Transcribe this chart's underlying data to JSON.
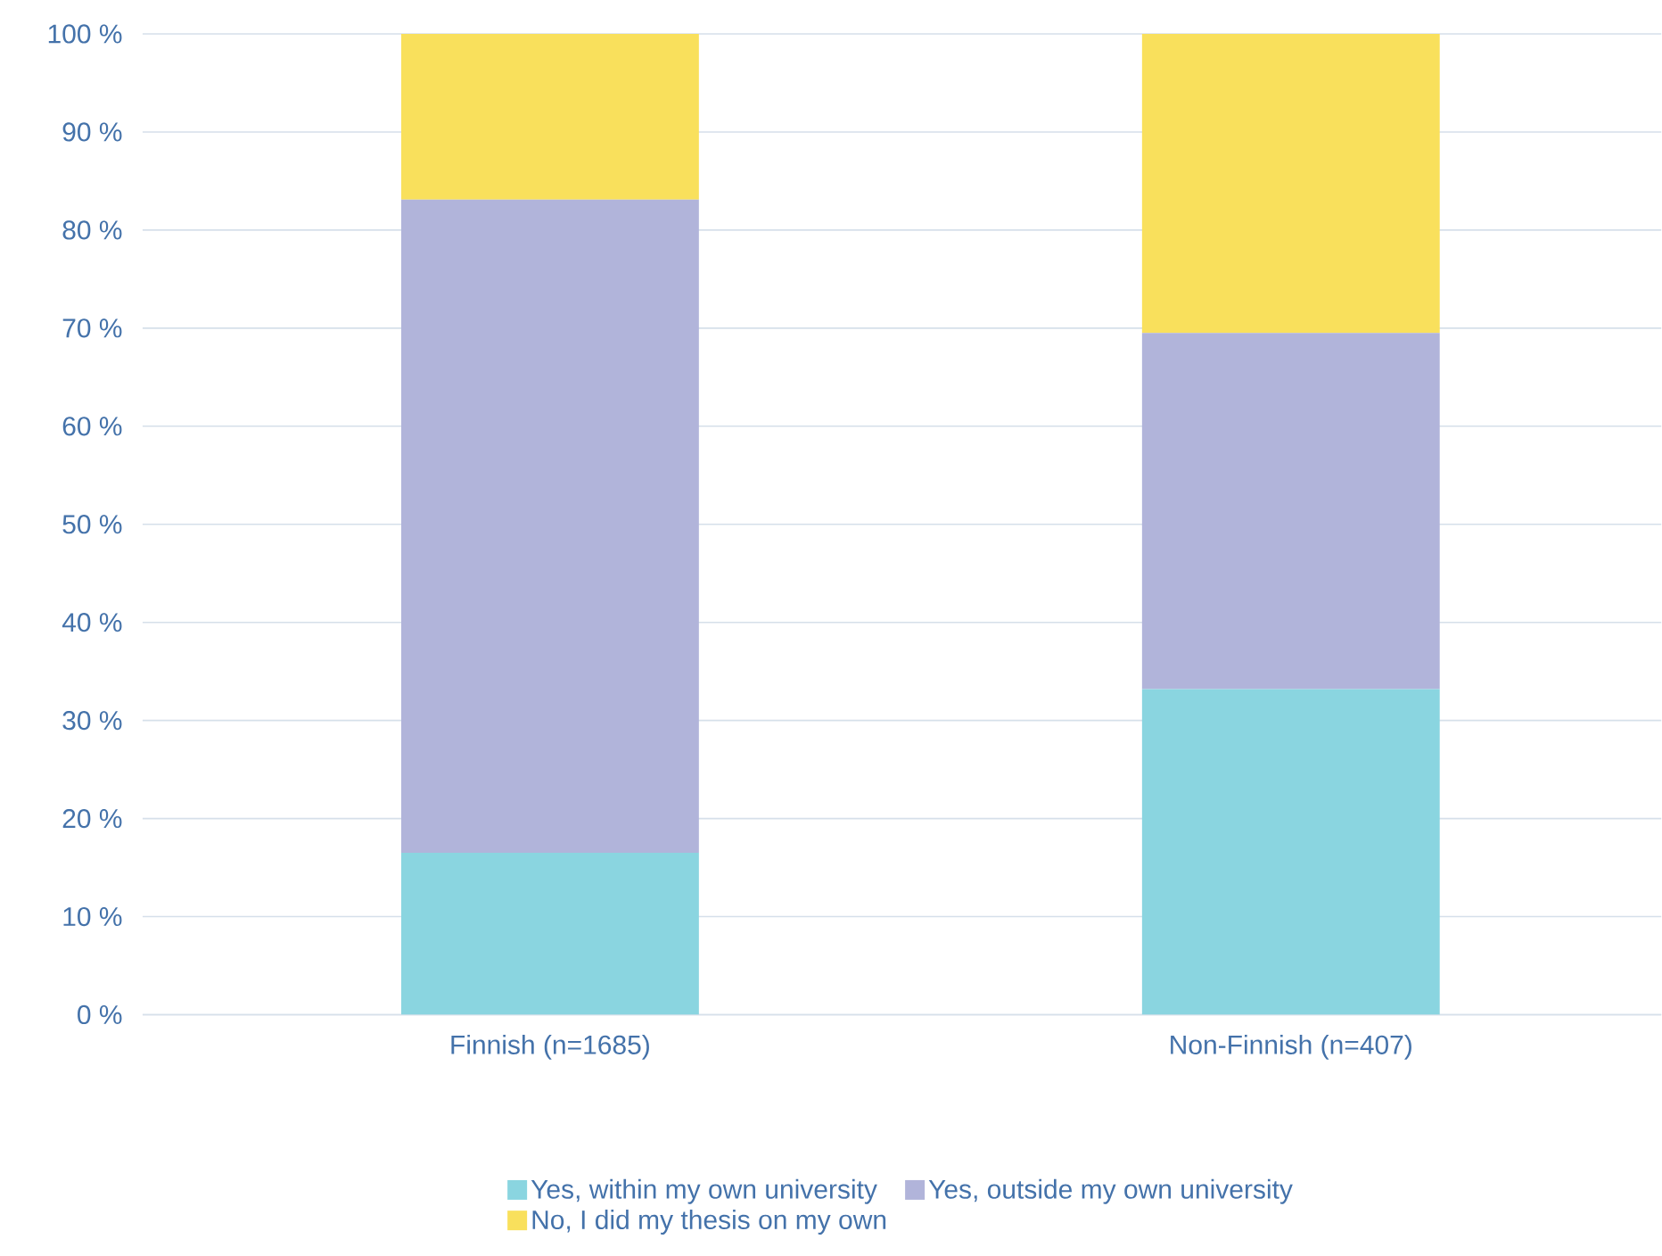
{
  "chart_data": {
    "type": "bar",
    "stacked": true,
    "categories": [
      "Finnish (n=1685)",
      "Non-Finnish (n=407)"
    ],
    "series": [
      {
        "name": "Yes, within my own university",
        "color": "#8ad5e0",
        "values": [
          16.5,
          33.2
        ]
      },
      {
        "name": "Yes, outside my own university",
        "color": "#b1b4da",
        "values": [
          66.6,
          36.3
        ]
      },
      {
        "name": "No, I did my thesis on my own",
        "color": "#f9e05c",
        "values": [
          16.9,
          30.5
        ]
      }
    ],
    "ylim": [
      0,
      100
    ],
    "yticks": [
      {
        "value": 0,
        "label": "0 %"
      },
      {
        "value": 10,
        "label": "10 %"
      },
      {
        "value": 20,
        "label": "20 %"
      },
      {
        "value": 30,
        "label": "30 %"
      },
      {
        "value": 40,
        "label": "40 %"
      },
      {
        "value": 50,
        "label": "50 %"
      },
      {
        "value": 60,
        "label": "60 %"
      },
      {
        "value": 70,
        "label": "70 %"
      },
      {
        "value": 80,
        "label": "80 %"
      },
      {
        "value": 90,
        "label": "90 %"
      },
      {
        "value": 100,
        "label": "100 %"
      }
    ],
    "grid": "y",
    "legend": "bottom"
  }
}
